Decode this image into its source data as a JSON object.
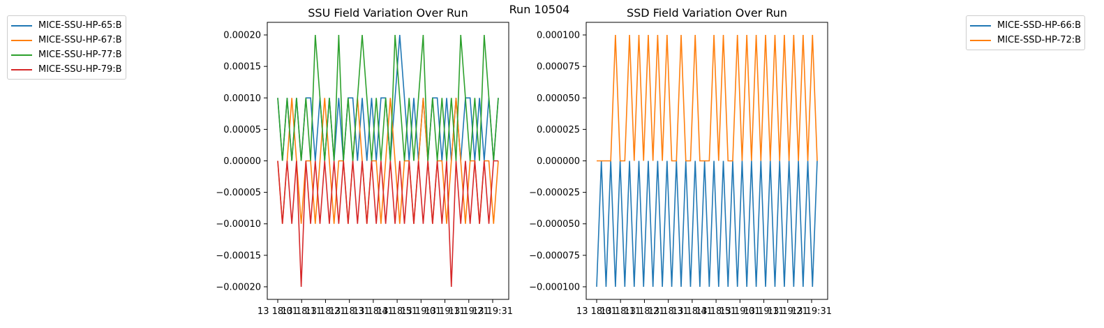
{
  "figure_title": "Run 10504",
  "chart_data": [
    {
      "type": "line",
      "title": "SSU Field Variation Over Run",
      "xlabel": "",
      "ylabel": "",
      "ylim": [
        -0.00022,
        0.00022
      ],
      "yticks": [
        -0.0002,
        -0.00015,
        -0.0001,
        -5e-05,
        0.0,
        5e-05,
        0.0001,
        0.00015,
        0.0002
      ],
      "ytick_labels": [
        "−0.00020",
        "−0.00015",
        "−0.00010",
        "−0.00005",
        "0.00000",
        "0.00005",
        "0.00010",
        "0.00015",
        "0.00020"
      ],
      "xtick_labels": [
        "13 18:01",
        "13 18:11",
        "13 18:21",
        "13 18:31",
        "13 18:41",
        "13 18:51",
        "13 19:01",
        "13 19:11",
        "13 19:21",
        "13 19:31"
      ],
      "legend_placement": "outside-left",
      "series": [
        {
          "name": "MICE-SSU-HP-65:B",
          "color": "#1f77b4",
          "values": [
            0.0001,
            0.0,
            0.0001,
            0.0,
            0.0001,
            0.0,
            0.0001,
            0.0001,
            0.0,
            0.0001,
            0.0,
            0.0001,
            0.0,
            0.0001,
            0.0,
            0.0001,
            0.0001,
            0.0,
            0.0001,
            0.0,
            0.0001,
            0.0,
            0.0001,
            0.0001,
            0.0,
            0.0001,
            0.0002,
            0.0001,
            0.0,
            0.0001,
            0.0,
            0.0001,
            0.0,
            0.0001,
            0.0001,
            0.0,
            0.0001,
            0.0,
            0.0001,
            0.0,
            0.0001,
            0.0001,
            0.0,
            0.0001,
            0.0,
            0.0001,
            0.0,
            0.0001
          ]
        },
        {
          "name": "MICE-SSU-HP-67:B",
          "color": "#ff7f0e",
          "values": [
            0.0,
            -0.0001,
            0.0,
            0.0001,
            0.0,
            -0.0001,
            0.0,
            0.0,
            -0.0001,
            0.0,
            0.0001,
            0.0,
            -0.0001,
            0.0,
            0.0,
            -0.0001,
            0.0,
            0.0001,
            0.0,
            -0.0001,
            0.0,
            0.0,
            -0.0001,
            0.0,
            0.0001,
            0.0,
            -0.0001,
            0.0,
            0.0,
            -0.0001,
            0.0,
            0.0001,
            0.0,
            -0.0001,
            0.0,
            0.0,
            -0.0001,
            0.0,
            0.0001,
            0.0,
            -0.0001,
            0.0,
            0.0,
            -0.0001,
            0.0,
            0.0,
            -0.0001,
            0.0
          ]
        },
        {
          "name": "MICE-SSU-HP-77:B",
          "color": "#2ca02c",
          "values": [
            0.0001,
            0.0,
            0.0001,
            0.0,
            0.0001,
            0.0,
            0.0001,
            0.0,
            0.0002,
            0.0001,
            0.0,
            0.0001,
            0.0,
            0.0002,
            0.0,
            0.0001,
            0.0,
            0.0001,
            0.0002,
            0.0001,
            0.0,
            0.0001,
            0.0,
            0.0001,
            0.0,
            0.0002,
            0.0001,
            0.0,
            0.0001,
            0.0,
            0.0001,
            0.0002,
            0.0,
            0.0001,
            0.0,
            0.0001,
            0.0,
            0.0001,
            0.0,
            0.0002,
            0.0001,
            0.0,
            0.0001,
            0.0,
            0.0002,
            0.0001,
            0.0,
            0.0001
          ]
        },
        {
          "name": "MICE-SSU-HP-79:B",
          "color": "#d62728",
          "values": [
            0.0,
            -0.0001,
            0.0,
            -0.0001,
            0.0,
            -0.0002,
            0.0,
            -0.0001,
            0.0,
            -0.0001,
            0.0,
            -0.0001,
            0.0,
            -0.0001,
            0.0,
            -0.0001,
            0.0,
            -0.0001,
            0.0,
            -0.0001,
            0.0,
            -0.0001,
            0.0,
            -0.0001,
            0.0,
            -0.0001,
            0.0,
            -0.0001,
            0.0,
            -0.0001,
            0.0,
            -0.0001,
            0.0,
            -0.0001,
            0.0,
            -0.0001,
            0.0,
            -0.0002,
            0.0,
            -0.0001,
            0.0,
            -0.0001,
            0.0,
            -0.0001,
            0.0,
            -0.0001,
            0.0,
            0.0
          ]
        }
      ]
    },
    {
      "type": "line",
      "title": "SSD Field Variation Over Run",
      "xlabel": "",
      "ylabel": "",
      "ylim": [
        -0.00011,
        0.00011
      ],
      "yticks": [
        -0.0001,
        -7.5e-05,
        -5e-05,
        -2.5e-05,
        0.0,
        2.5e-05,
        5e-05,
        7.5e-05,
        0.0001
      ],
      "ytick_labels": [
        "−0.000100",
        "−0.000075",
        "−0.000050",
        "−0.000025",
        "0.000000",
        "0.000025",
        "0.000050",
        "0.000075",
        "0.000100"
      ],
      "xtick_labels": [
        "13 18:01",
        "13 18:11",
        "13 18:21",
        "13 18:31",
        "13 18:41",
        "13 18:51",
        "13 19:01",
        "13 19:11",
        "13 19:21",
        "13 19:31"
      ],
      "legend_placement": "outside-right",
      "series": [
        {
          "name": "MICE-SSD-HP-66:B",
          "color": "#1f77b4",
          "values": [
            -0.0001,
            0.0,
            -0.0001,
            0.0,
            -0.0001,
            0.0,
            -0.0001,
            0.0,
            -0.0001,
            0.0,
            -0.0001,
            0.0,
            -0.0001,
            0.0,
            -0.0001,
            0.0,
            -0.0001,
            0.0,
            -0.0001,
            0.0,
            -0.0001,
            0.0,
            -0.0001,
            0.0,
            -0.0001,
            0.0,
            -0.0001,
            0.0,
            -0.0001,
            0.0,
            -0.0001,
            0.0,
            -0.0001,
            0.0,
            -0.0001,
            0.0,
            -0.0001,
            0.0,
            -0.0001,
            0.0,
            -0.0001,
            0.0,
            -0.0001,
            0.0,
            -0.0001,
            0.0,
            -0.0001,
            0.0
          ]
        },
        {
          "name": "MICE-SSD-HP-72:B",
          "color": "#ff7f0e",
          "values": [
            0.0,
            0.0,
            0.0,
            0.0,
            0.0001,
            0.0,
            0.0,
            0.0001,
            0.0,
            0.0001,
            0.0,
            0.0001,
            0.0,
            0.0001,
            0.0,
            0.0001,
            0.0,
            0.0,
            0.0001,
            0.0,
            0.0,
            0.0001,
            0.0,
            0.0,
            0.0,
            0.0001,
            0.0,
            0.0001,
            0.0,
            0.0,
            0.0001,
            0.0,
            0.0001,
            0.0,
            0.0001,
            0.0,
            0.0001,
            0.0,
            0.0001,
            0.0,
            0.0001,
            0.0,
            0.0001,
            0.0,
            0.0001,
            0.0,
            0.0001,
            0.0
          ]
        }
      ]
    }
  ]
}
